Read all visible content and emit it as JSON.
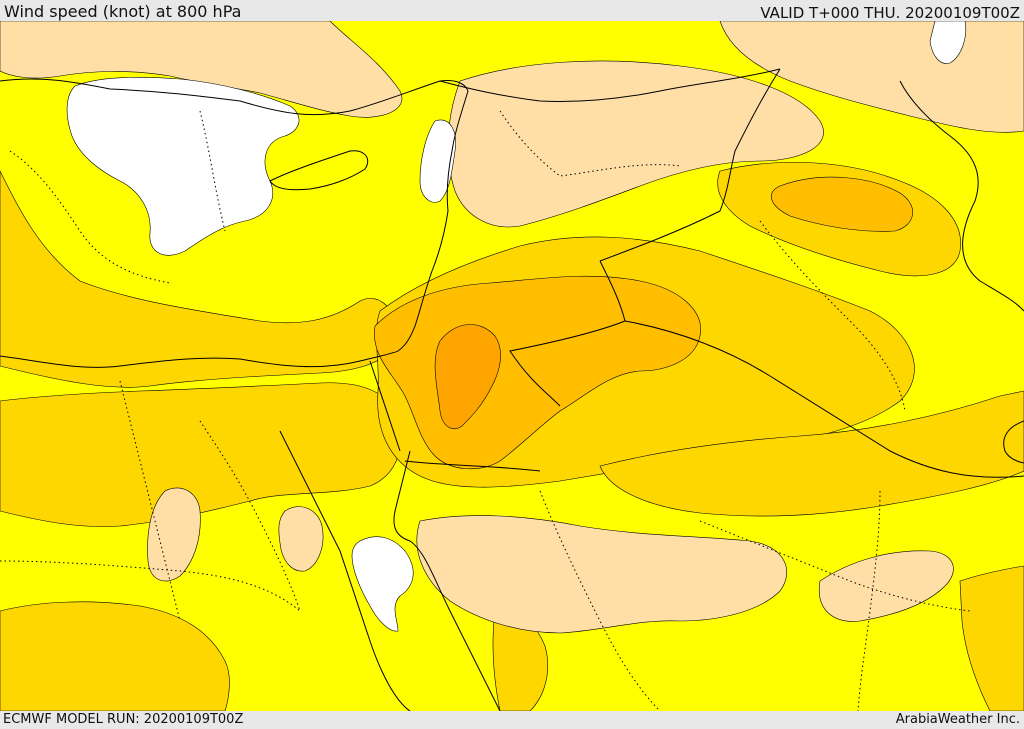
{
  "header": {
    "title": "Wind speed (knot) at 800 hPa",
    "valid": "VALID T+000 THU. 20200109T00Z"
  },
  "footer": {
    "model_run": "ECMWF MODEL RUN: 20200109T00Z",
    "credit": "ArabiaWeather Inc."
  },
  "map": {
    "colors": {
      "calm": "#ffffff",
      "light": "#ffdfa6",
      "moderate": "#ffff00",
      "fresh": "#ffd700",
      "strong": "#ffbf00",
      "very_strong": "#ffa500",
      "border": "#000000"
    }
  }
}
